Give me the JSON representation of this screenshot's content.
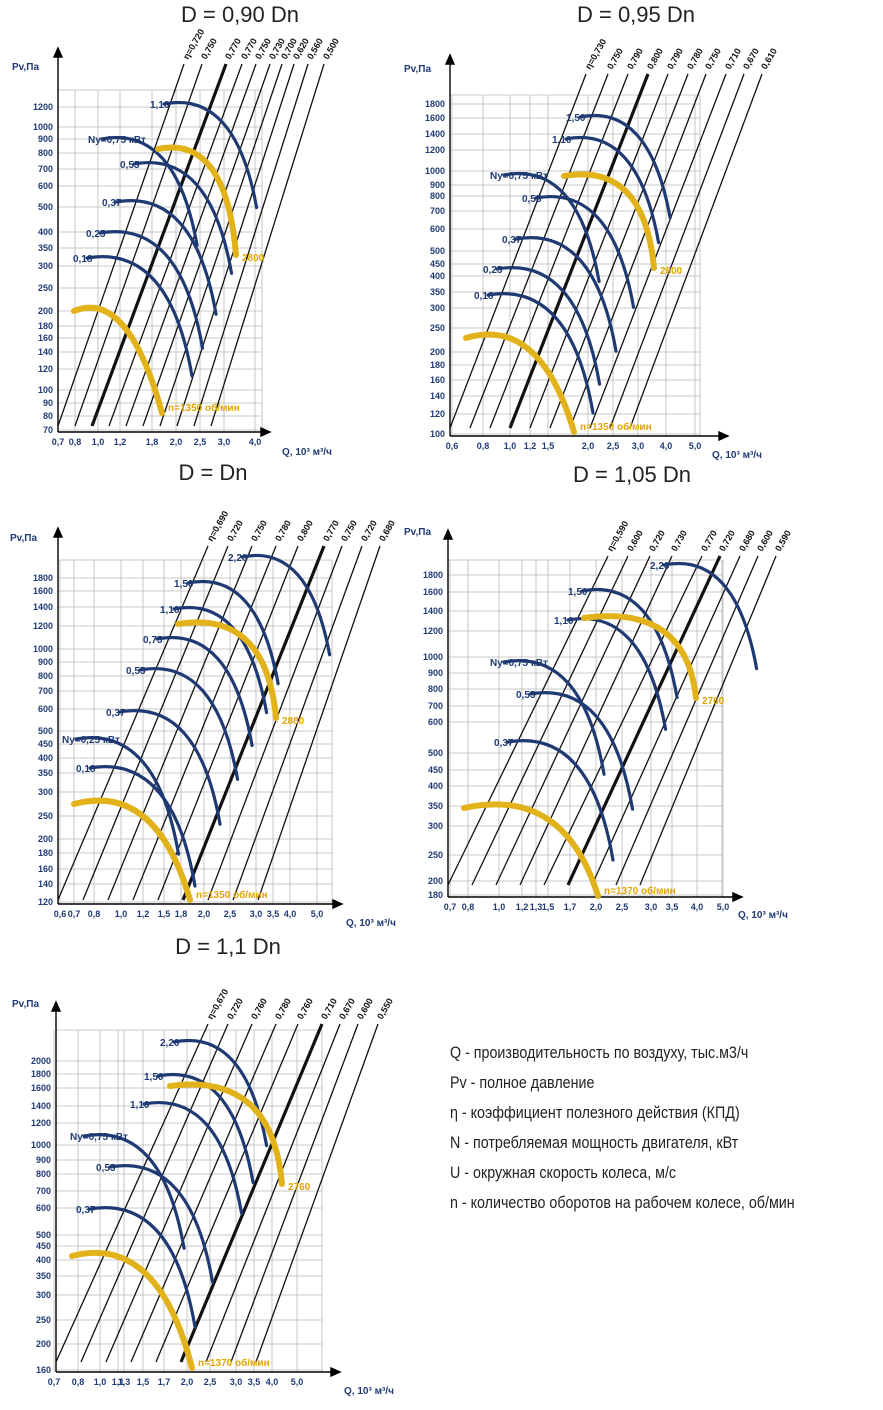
{
  "chart_data": [
    {
      "type": "line",
      "title": "D = 0,90 Dn",
      "ylabel": "Pv,Па",
      "xlabel": "Q, 10³ м³/ч",
      "xticks": [
        "0,7",
        "0,8",
        "1,0",
        "1,2",
        "1,8",
        "2,0",
        "2,5",
        "3,0",
        "4,0"
      ],
      "yticks": [
        "70",
        "80",
        "90",
        "100",
        "120",
        "140",
        "160",
        "180",
        "200",
        "250",
        "300",
        "350",
        "400",
        "500",
        "600",
        "700",
        "800",
        "900",
        "1000",
        "1200"
      ],
      "efficiency_labels": [
        "η=0,720",
        "0,750",
        "0,770",
        "0,770",
        "0,750",
        "0,730",
        "0,700",
        "0,620",
        "0,560",
        "0,500"
      ],
      "power_labels": [
        "0,18",
        "0,25",
        "0,37",
        "0,55",
        "Nу=0,75 кВт",
        "1,10"
      ],
      "speed_labels": [
        "n=1350 об/мин",
        "2800"
      ]
    },
    {
      "type": "line",
      "title": "D = 0,95 Dn",
      "ylabel": "Pv,Па",
      "xlabel": "Q, 10³ м³/ч",
      "xticks": [
        "0,6",
        "0,8",
        "1,0",
        "1,2",
        "1,5",
        "2,0",
        "2,5",
        "3,0",
        "4,0",
        "5,0"
      ],
      "yticks": [
        "100",
        "120",
        "140",
        "160",
        "180",
        "200",
        "250",
        "300",
        "350",
        "400",
        "450",
        "500",
        "600",
        "700",
        "800",
        "900",
        "1000",
        "1200",
        "1400",
        "1600",
        "1800"
      ],
      "efficiency_labels": [
        "η=0,730",
        "0,750",
        "0,790",
        "0,800",
        "0,790",
        "0,780",
        "0,750",
        "0,710",
        "0,670",
        "0,610"
      ],
      "power_labels": [
        "0,18",
        "0,25",
        "0,37",
        "0,55",
        "Nу=0,75 кВт",
        "1,10",
        "1,50"
      ],
      "speed_labels": [
        "n=1350 об/мин",
        "2800"
      ]
    },
    {
      "type": "line",
      "title": "D = Dn",
      "ylabel": "Pv,Па",
      "xlabel": "Q, 10³ м³/ч",
      "xticks": [
        "0,6",
        "0,7",
        "0,8",
        "1,0",
        "1,2",
        "1,5",
        "1,8",
        "2,0",
        "2,5",
        "3,0",
        "3,5",
        "4,0",
        "5,0"
      ],
      "yticks": [
        "120",
        "140",
        "160",
        "180",
        "200",
        "250",
        "300",
        "350",
        "400",
        "450",
        "500",
        "600",
        "700",
        "800",
        "900",
        "1000",
        "1200",
        "1400",
        "1600",
        "1800"
      ],
      "efficiency_labels": [
        "η=0,690",
        "0,720",
        "0,750",
        "0,780",
        "0,800",
        "0,770",
        "0,750",
        "0,720",
        "0,680"
      ],
      "power_labels": [
        "0,18",
        "Nу=0,25 кВт",
        "0,37",
        "0,55",
        "0,75",
        "1,10",
        "1,50",
        "2,20"
      ],
      "speed_labels": [
        "n=1350 об/мин",
        "2880"
      ]
    },
    {
      "type": "line",
      "title": "D = 1,05 Dn",
      "ylabel": "Pv,Па",
      "xlabel": "Q, 10³ м³/ч",
      "xticks": [
        "0,7",
        "0,8",
        "1,0",
        "1,2",
        "1,3",
        "1,5",
        "1,7",
        "2,0",
        "2,5",
        "3,0",
        "3,5",
        "4,0",
        "5,0"
      ],
      "yticks": [
        "180",
        "200",
        "250",
        "300",
        "350",
        "400",
        "450",
        "500",
        "600",
        "700",
        "800",
        "900",
        "1000",
        "1200",
        "1400",
        "1600",
        "1800"
      ],
      "efficiency_labels": [
        "η=0,590",
        "0,600",
        "0,720",
        "0,730",
        "0,770",
        "0,720",
        "0,680",
        "0,600",
        "0,590"
      ],
      "power_labels": [
        "0,37",
        "0,55",
        "Nу=0,75 кВт",
        "1,10",
        "1,50",
        "2,20"
      ],
      "speed_labels": [
        "n=1370 об/мин",
        "2760"
      ]
    },
    {
      "type": "line",
      "title": "D = 1,1 Dn",
      "ylabel": "Pv,Па",
      "xlabel": "Q, 10³ м³/ч",
      "xticks": [
        "0,7",
        "0,8",
        "1,0",
        "1,1",
        "1,3",
        "1,5",
        "1,7",
        "2,0",
        "2,5",
        "3,0",
        "3,5",
        "4,0",
        "5,0"
      ],
      "yticks": [
        "160",
        "200",
        "250",
        "300",
        "350",
        "400",
        "450",
        "500",
        "600",
        "700",
        "800",
        "900",
        "1000",
        "1200",
        "1400",
        "1600",
        "1800",
        "2000"
      ],
      "efficiency_labels": [
        "η=0,670",
        "0,720",
        "0,760",
        "0,780",
        "0,760",
        "0,710",
        "0,670",
        "0,600",
        "0,550"
      ],
      "power_labels": [
        "0,37",
        "0,55",
        "Nу=0,75 кВт",
        "1,10",
        "1,50",
        "2,20"
      ],
      "speed_labels": [
        "n=1370 об/мин",
        "2760"
      ]
    }
  ],
  "legend": [
    "Q - производительность по воздуху, тыс.м3/ч",
    "Pv - полное давление",
    "η - коэффициент полезного действия (КПД)",
    "N - потребляемая мощность двигателя, кВт",
    "U - окружная скорость колеса, м/с",
    "n - количество оборотов на рабочем колесе, об/мин"
  ],
  "colors": {
    "grid": "#b9b9b9",
    "axis": "#000000",
    "efficiency": "#111111",
    "power": "#1f3a73",
    "speed": "#e2b21a",
    "label": "#1f3a73"
  }
}
